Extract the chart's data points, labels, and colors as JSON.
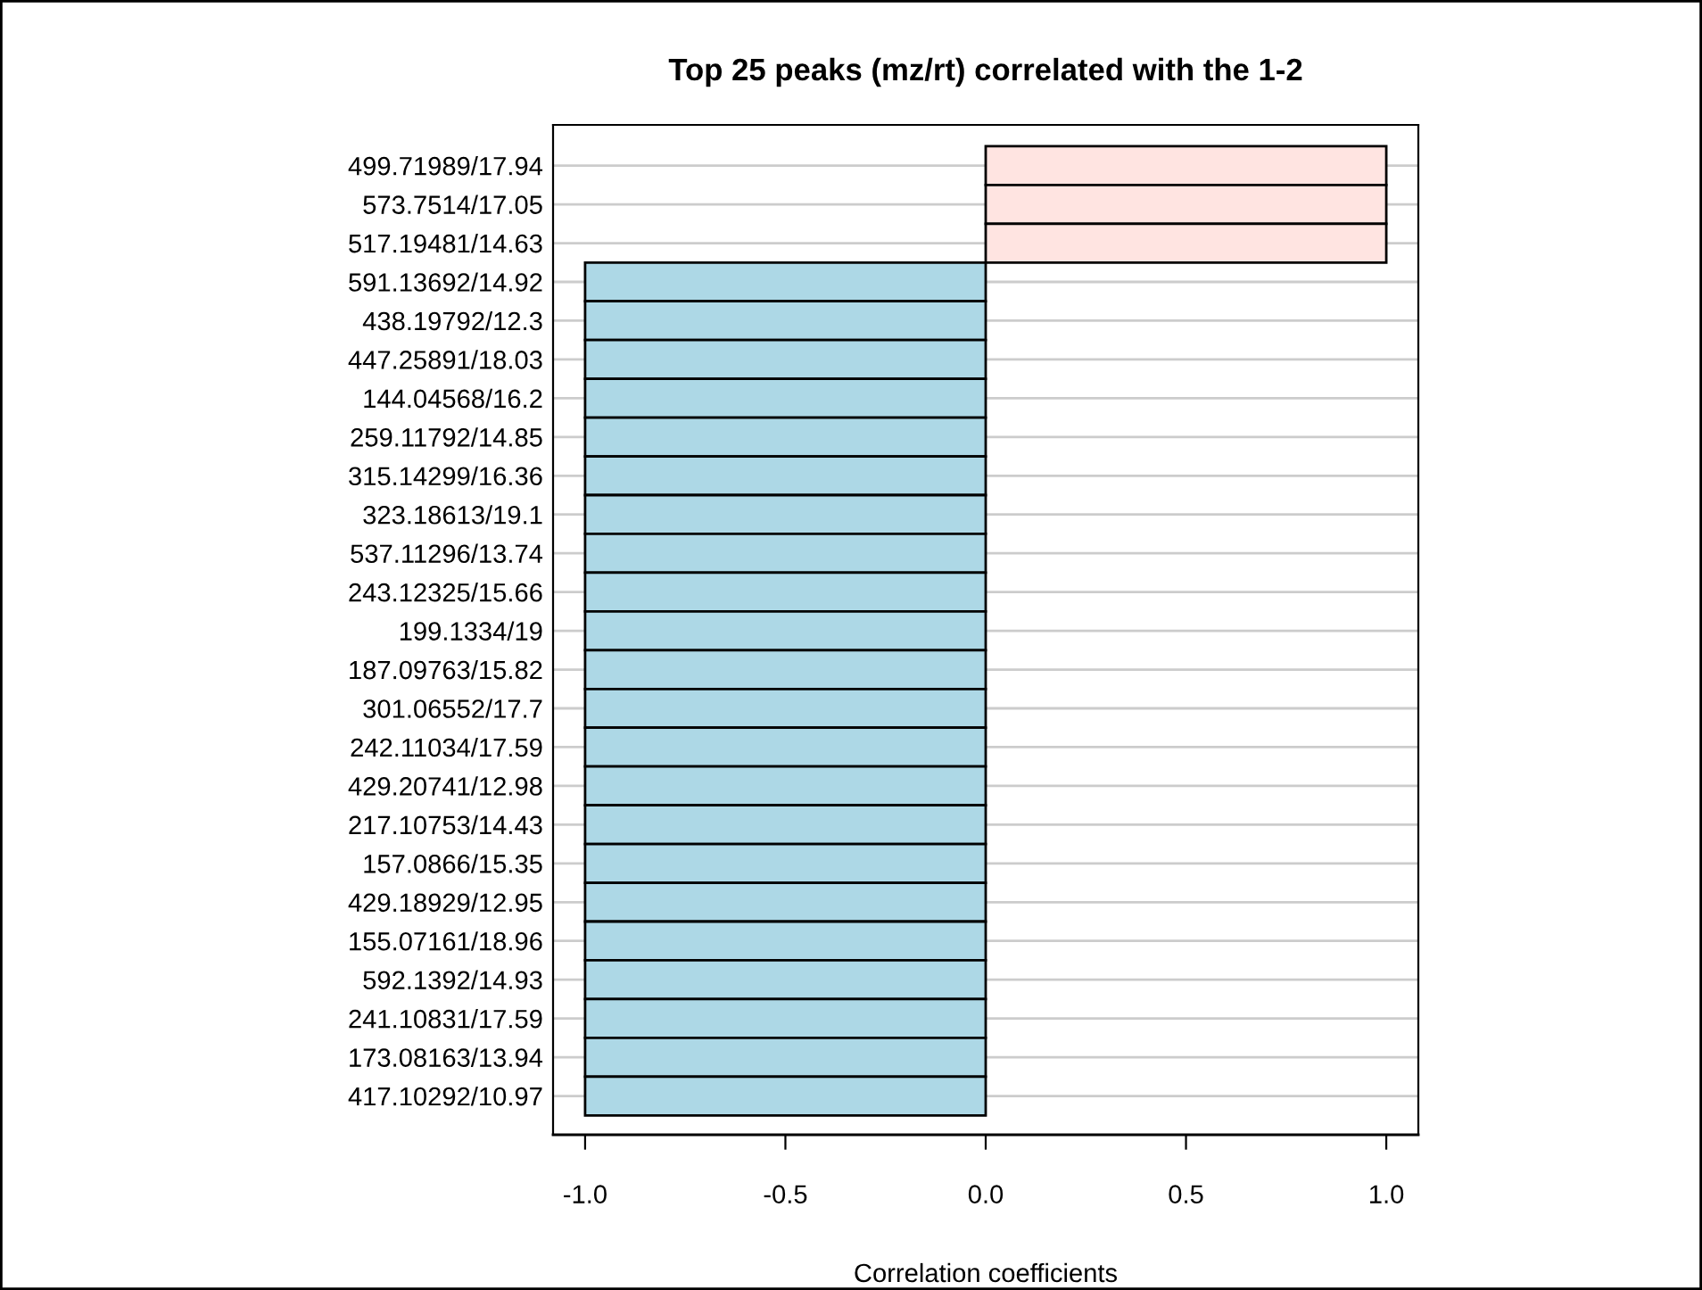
{
  "chart_data": {
    "type": "bar",
    "orientation": "horizontal",
    "title": "Top 25 peaks (mz/rt) correlated with the 1-2",
    "xlabel": "Correlation coefficients",
    "categories": [
      "499.71989/17.94",
      "573.7514/17.05",
      "517.19481/14.63",
      "591.13692/14.92",
      "438.19792/12.3",
      "447.25891/18.03",
      "144.04568/16.2",
      "259.11792/14.85",
      "315.14299/16.36",
      "323.18613/19.1",
      "537.11296/13.74",
      "243.12325/15.66",
      "199.1334/19",
      "187.09763/15.82",
      "301.06552/17.7",
      "242.11034/17.59",
      "429.20741/12.98",
      "217.10753/14.43",
      "157.0866/15.35",
      "429.18929/12.95",
      "155.07161/18.96",
      "592.1392/14.93",
      "241.10831/17.59",
      "173.08163/13.94",
      "417.10292/10.97"
    ],
    "values": [
      1,
      1,
      1,
      -1,
      -1,
      -1,
      -1,
      -1,
      -1,
      -1,
      -1,
      -1,
      -1,
      -1,
      -1,
      -1,
      -1,
      -1,
      -1,
      -1,
      -1,
      -1,
      -1,
      -1,
      -1
    ],
    "colors": [
      "#ffe4e1",
      "#ffe4e1",
      "#ffe4e1",
      "#add8e6",
      "#add8e6",
      "#add8e6",
      "#add8e6",
      "#add8e6",
      "#add8e6",
      "#add8e6",
      "#add8e6",
      "#add8e6",
      "#add8e6",
      "#add8e6",
      "#add8e6",
      "#add8e6",
      "#add8e6",
      "#add8e6",
      "#add8e6",
      "#add8e6",
      "#add8e6",
      "#add8e6",
      "#add8e6",
      "#add8e6",
      "#add8e6"
    ],
    "xlim": [
      -1.08,
      1.08
    ],
    "xticks": [
      {
        "value": -1,
        "label": "-1.0"
      },
      {
        "value": -0.5,
        "label": "-0.5"
      },
      {
        "value": 0,
        "label": "0.0"
      },
      {
        "value": 0.5,
        "label": "0.5"
      },
      {
        "value": 1,
        "label": "1.0"
      }
    ],
    "grid": "y",
    "legend": false
  }
}
